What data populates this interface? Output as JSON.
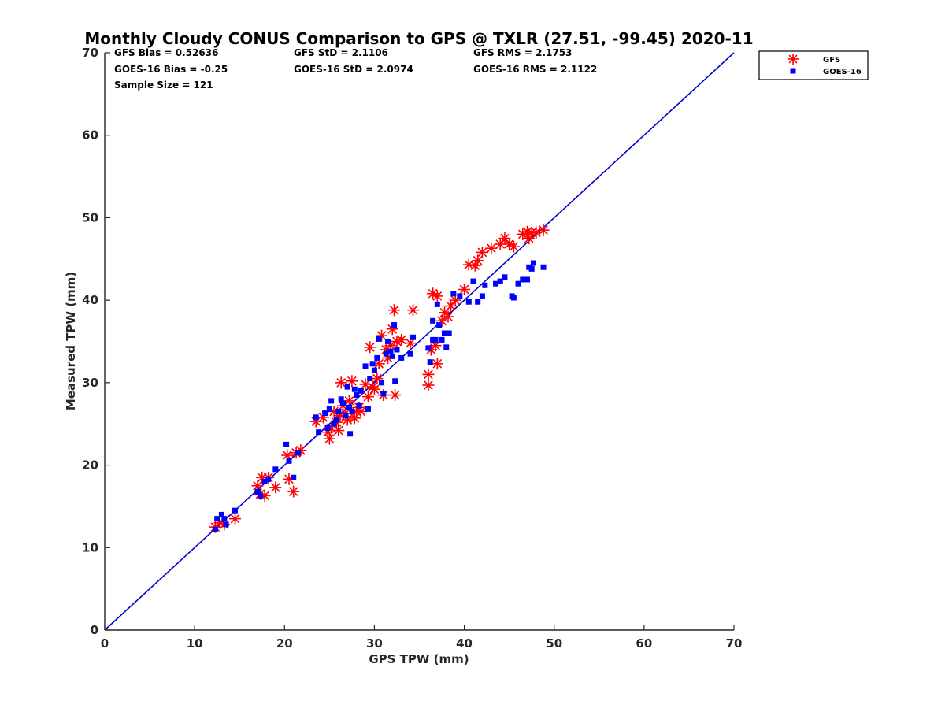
{
  "chart_data": {
    "type": "scatter",
    "title": "Monthly Cloudy CONUS Comparison to GPS @ TXLR (27.51, -99.45) 2020-11",
    "xlabel": "GPS TPW (mm)",
    "ylabel": "Measured TPW (mm)",
    "xlim": [
      0,
      70
    ],
    "ylim": [
      0,
      70
    ],
    "xticks": [
      "0",
      "10",
      "20",
      "30",
      "40",
      "50",
      "60",
      "70"
    ],
    "yticks": [
      "0",
      "10",
      "20",
      "30",
      "40",
      "50",
      "60",
      "70"
    ],
    "grid": false,
    "legend_position": "outside-top-right",
    "reference_line": {
      "from": [
        0,
        0
      ],
      "to": [
        70,
        70
      ],
      "color": "#0000cc"
    },
    "stats": [
      [
        "GFS Bias = 0.52636",
        "GFS StD = 2.1106",
        "GFS RMS = 2.1753"
      ],
      [
        "GOES-16 Bias = -0.25",
        "GOES-16 StD = 2.0974",
        "GOES-16 RMS = 2.1122"
      ],
      [
        "Sample Size = 121"
      ]
    ],
    "series": [
      {
        "name": "GFS",
        "marker": "asterisk",
        "color": "#ff0000",
        "points": [
          [
            12.3,
            12.5
          ],
          [
            12.8,
            13.0
          ],
          [
            13.3,
            12.8
          ],
          [
            14.5,
            13.5
          ],
          [
            17.0,
            17.5
          ],
          [
            17.3,
            16.5
          ],
          [
            17.5,
            18.5
          ],
          [
            17.8,
            16.3
          ],
          [
            18.2,
            18.5
          ],
          [
            19.0,
            17.3
          ],
          [
            20.3,
            21.2
          ],
          [
            20.5,
            18.3
          ],
          [
            21.0,
            16.8
          ],
          [
            21.3,
            21.5
          ],
          [
            21.8,
            21.8
          ],
          [
            23.5,
            25.3
          ],
          [
            24.3,
            25.8
          ],
          [
            24.8,
            24.0
          ],
          [
            25.0,
            23.2
          ],
          [
            25.2,
            24.5
          ],
          [
            25.5,
            26.5
          ],
          [
            25.8,
            25.2
          ],
          [
            26.0,
            24.2
          ],
          [
            26.2,
            26.0
          ],
          [
            26.3,
            30.0
          ],
          [
            26.5,
            27.2
          ],
          [
            26.8,
            26.3
          ],
          [
            27.0,
            25.5
          ],
          [
            27.2,
            27.8
          ],
          [
            27.5,
            30.2
          ],
          [
            27.8,
            25.7
          ],
          [
            28.0,
            26.5
          ],
          [
            28.3,
            27.0
          ],
          [
            28.5,
            26.5
          ],
          [
            29.0,
            29.8
          ],
          [
            29.3,
            28.3
          ],
          [
            29.5,
            34.3
          ],
          [
            29.8,
            29.5
          ],
          [
            30.0,
            29.2
          ],
          [
            30.3,
            30.5
          ],
          [
            30.5,
            32.3
          ],
          [
            30.8,
            35.7
          ],
          [
            31.0,
            28.5
          ],
          [
            31.3,
            34.0
          ],
          [
            31.5,
            33.0
          ],
          [
            31.8,
            34.5
          ],
          [
            32.0,
            36.5
          ],
          [
            32.2,
            38.8
          ],
          [
            32.3,
            28.5
          ],
          [
            32.5,
            35.0
          ],
          [
            33.0,
            35.2
          ],
          [
            34.0,
            34.8
          ],
          [
            34.3,
            38.8
          ],
          [
            36.0,
            31.0
          ],
          [
            36.0,
            29.7
          ],
          [
            36.3,
            34.0
          ],
          [
            36.5,
            40.8
          ],
          [
            36.8,
            34.5
          ],
          [
            37.0,
            40.5
          ],
          [
            37.0,
            32.3
          ],
          [
            37.5,
            37.5
          ],
          [
            37.8,
            38.5
          ],
          [
            38.2,
            38.0
          ],
          [
            38.5,
            39.3
          ],
          [
            39.0,
            40.0
          ],
          [
            40.0,
            41.3
          ],
          [
            40.5,
            44.3
          ],
          [
            41.2,
            44.2
          ],
          [
            41.5,
            44.8
          ],
          [
            42.0,
            45.8
          ],
          [
            43.0,
            46.3
          ],
          [
            44.0,
            46.8
          ],
          [
            44.5,
            47.5
          ],
          [
            45.0,
            46.8
          ],
          [
            45.5,
            46.5
          ],
          [
            46.5,
            48.0
          ],
          [
            47.0,
            48.3
          ],
          [
            47.2,
            47.5
          ],
          [
            47.5,
            48.2
          ],
          [
            48.0,
            48.2
          ],
          [
            48.8,
            48.5
          ]
        ]
      },
      {
        "name": "GOES-16",
        "marker": "square",
        "color": "#0000ff",
        "points": [
          [
            12.3,
            12.2
          ],
          [
            12.5,
            13.5
          ],
          [
            13.0,
            14.0
          ],
          [
            13.3,
            13.5
          ],
          [
            13.5,
            12.8
          ],
          [
            14.5,
            14.5
          ],
          [
            17.0,
            16.8
          ],
          [
            17.3,
            16.3
          ],
          [
            17.8,
            18.0
          ],
          [
            18.2,
            18.3
          ],
          [
            19.0,
            19.5
          ],
          [
            20.2,
            22.5
          ],
          [
            20.5,
            20.5
          ],
          [
            21.0,
            18.5
          ],
          [
            21.5,
            21.5
          ],
          [
            23.5,
            25.8
          ],
          [
            23.8,
            24.0
          ],
          [
            24.5,
            26.3
          ],
          [
            24.8,
            24.5
          ],
          [
            25.0,
            26.8
          ],
          [
            25.2,
            27.8
          ],
          [
            25.5,
            25.0
          ],
          [
            25.8,
            25.5
          ],
          [
            26.0,
            26.5
          ],
          [
            26.3,
            28.0
          ],
          [
            26.5,
            27.5
          ],
          [
            26.8,
            26.0
          ],
          [
            27.0,
            29.5
          ],
          [
            27.2,
            27.0
          ],
          [
            27.3,
            23.8
          ],
          [
            27.5,
            26.5
          ],
          [
            27.8,
            29.2
          ],
          [
            28.0,
            28.5
          ],
          [
            28.3,
            27.2
          ],
          [
            28.5,
            29.0
          ],
          [
            29.0,
            32.0
          ],
          [
            29.3,
            26.8
          ],
          [
            29.5,
            30.5
          ],
          [
            29.8,
            32.3
          ],
          [
            30.0,
            31.5
          ],
          [
            30.3,
            33.0
          ],
          [
            30.5,
            35.3
          ],
          [
            30.8,
            30.0
          ],
          [
            31.0,
            28.7
          ],
          [
            31.3,
            33.5
          ],
          [
            31.5,
            35.0
          ],
          [
            31.8,
            33.8
          ],
          [
            32.0,
            33.2
          ],
          [
            32.2,
            37.0
          ],
          [
            32.3,
            30.2
          ],
          [
            32.5,
            34.0
          ],
          [
            33.0,
            33.0
          ],
          [
            34.0,
            33.5
          ],
          [
            34.3,
            35.5
          ],
          [
            36.0,
            34.2
          ],
          [
            36.2,
            32.5
          ],
          [
            36.5,
            35.2
          ],
          [
            36.5,
            37.5
          ],
          [
            36.8,
            35.2
          ],
          [
            37.0,
            39.5
          ],
          [
            37.2,
            37.0
          ],
          [
            37.5,
            35.2
          ],
          [
            37.8,
            36.0
          ],
          [
            38.0,
            34.3
          ],
          [
            38.3,
            36.0
          ],
          [
            38.8,
            40.8
          ],
          [
            39.5,
            40.5
          ],
          [
            40.5,
            39.8
          ],
          [
            41.0,
            42.3
          ],
          [
            41.5,
            39.8
          ],
          [
            42.0,
            40.5
          ],
          [
            42.3,
            41.8
          ],
          [
            43.5,
            42.0
          ],
          [
            44.0,
            42.3
          ],
          [
            44.5,
            42.8
          ],
          [
            45.3,
            40.5
          ],
          [
            45.5,
            40.3
          ],
          [
            46.0,
            42.0
          ],
          [
            46.5,
            42.5
          ],
          [
            47.0,
            42.5
          ],
          [
            47.2,
            44.0
          ],
          [
            47.5,
            43.8
          ],
          [
            47.7,
            44.5
          ],
          [
            48.8,
            44.0
          ]
        ]
      }
    ]
  }
}
